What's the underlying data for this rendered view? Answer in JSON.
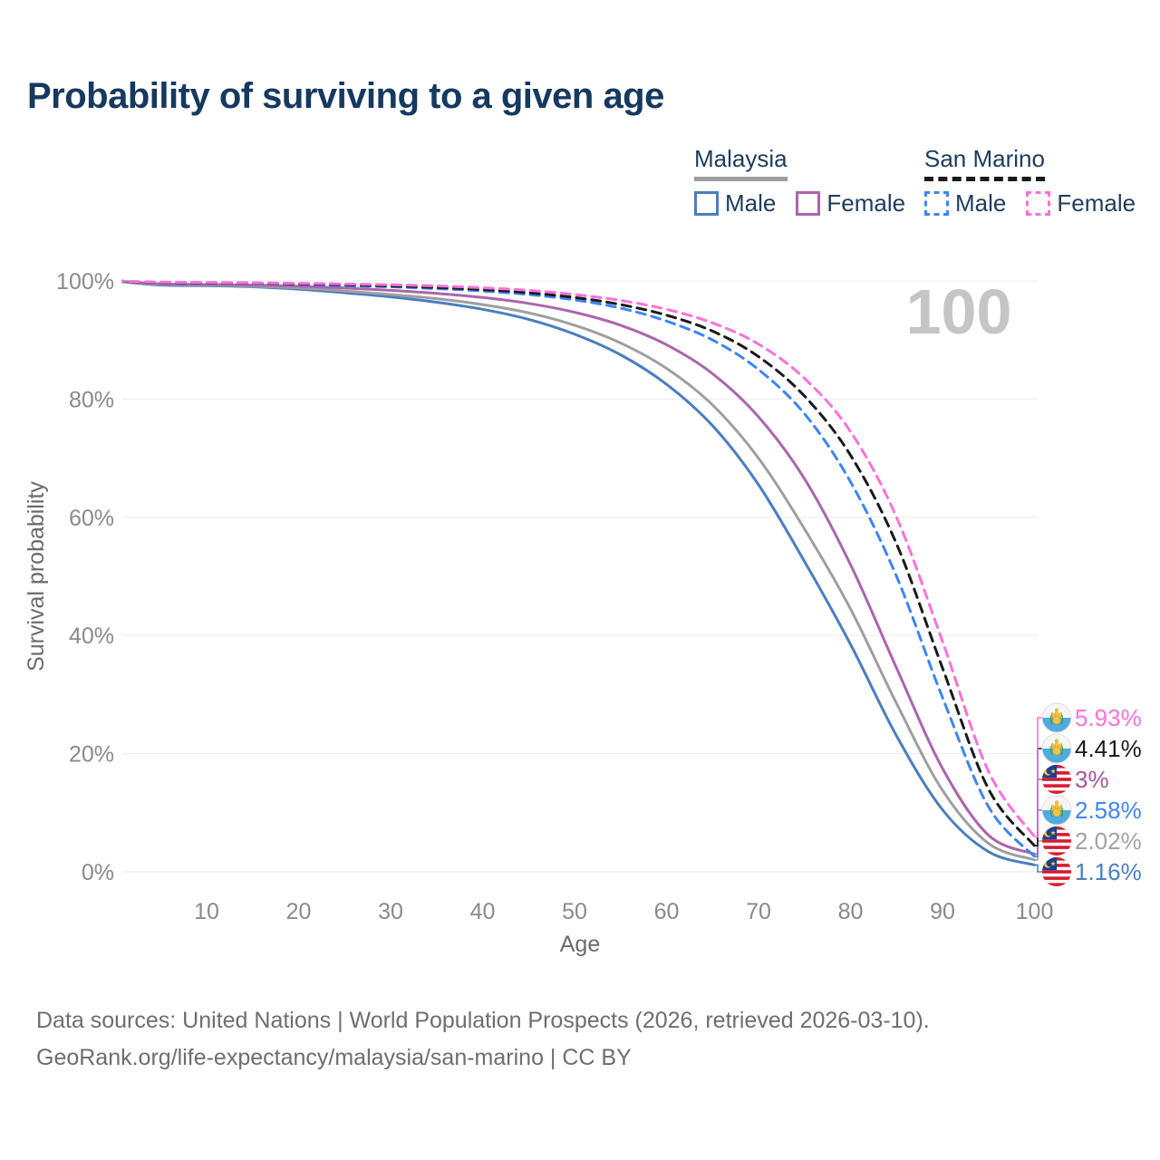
{
  "title": "Probability of surviving to a given age",
  "legend": {
    "groups": [
      {
        "id": "malaysia",
        "label": "Malaysia",
        "line_style": "solid",
        "underline_color": "#9e9e9e",
        "items": [
          {
            "label": "Male",
            "color": "#4a7ec0"
          },
          {
            "label": "Female",
            "color": "#ad64ad"
          }
        ]
      },
      {
        "id": "san-marino",
        "label": "San Marino",
        "line_style": "dashed",
        "underline_color": "#1a1a1a",
        "items": [
          {
            "label": "Male",
            "color": "#3d85f2"
          },
          {
            "label": "Female",
            "color": "#ff70d9"
          }
        ]
      }
    ]
  },
  "chart_data": {
    "type": "line",
    "title": "Probability of surviving to a given age",
    "xlabel": "Age",
    "ylabel": "Survival probability",
    "xlim": [
      0,
      100
    ],
    "ylim": [
      0,
      100
    ],
    "x_ticks": [
      10,
      20,
      30,
      40,
      50,
      60,
      70,
      80,
      90,
      100
    ],
    "y_ticks": [
      0,
      20,
      40,
      60,
      80,
      100
    ],
    "y_tick_labels": [
      "0%",
      "20%",
      "40%",
      "60%",
      "80%",
      "100%"
    ],
    "grid": true,
    "legend_position": "top-right",
    "age_indicator": "100",
    "x_ages": [
      0,
      5,
      10,
      15,
      20,
      25,
      30,
      35,
      40,
      45,
      50,
      55,
      60,
      65,
      70,
      75,
      80,
      85,
      90,
      95,
      100
    ],
    "series": [
      {
        "id": "my-male",
        "name": "Malaysia Male",
        "country": "Malaysia",
        "sex": "male",
        "line_style": "solid",
        "color": "#4a7ec0",
        "label_color": "#4a7ec0",
        "flag_icon": "malaysia-flag-icon",
        "end_value_label": "1.16%",
        "end_value": 1.16,
        "values": [
          100,
          99.3,
          99.2,
          99.0,
          98.6,
          98.0,
          97.3,
          96.4,
          95.2,
          93.5,
          91.0,
          87.5,
          82.5,
          75.5,
          65.5,
          52.5,
          38.5,
          23.0,
          10.5,
          3.4,
          1.16
        ]
      },
      {
        "id": "my-all",
        "name": "Malaysia Both sexes",
        "country": "Malaysia",
        "sex": "all",
        "line_style": "solid",
        "color": "#9f9f9f",
        "label_color": "#a3a3a3",
        "flag_icon": "malaysia-flag-icon",
        "end_value_label": "2.02%",
        "end_value": 2.02,
        "values": [
          100,
          99.4,
          99.3,
          99.1,
          98.8,
          98.3,
          97.7,
          97.0,
          96.0,
          94.6,
          92.5,
          89.5,
          85.2,
          79.0,
          70.0,
          58.0,
          44.5,
          28.5,
          13.8,
          4.8,
          2.02
        ]
      },
      {
        "id": "my-female",
        "name": "Malaysia Female",
        "country": "Malaysia",
        "sex": "female",
        "line_style": "solid",
        "color": "#ad64ad",
        "label_color": "#a8549e",
        "flag_icon": "malaysia-flag-icon",
        "end_value_label": "3%",
        "end_value": 3.0,
        "values": [
          100,
          99.5,
          99.4,
          99.3,
          99.1,
          98.8,
          98.4,
          97.9,
          97.2,
          96.2,
          94.7,
          92.5,
          89.2,
          84.3,
          77.0,
          66.5,
          52.0,
          34.5,
          17.5,
          6.2,
          3.0
        ]
      },
      {
        "id": "sm-male",
        "name": "San Marino Male",
        "country": "San Marino",
        "sex": "male",
        "line_style": "dashed",
        "color": "#3d85f2",
        "label_color": "#3d85f2",
        "flag_icon": "san-marino-flag-icon",
        "end_value_label": "2.58%",
        "end_value": 2.58,
        "values": [
          100,
          99.7,
          99.65,
          99.6,
          99.4,
          99.2,
          99.0,
          98.7,
          98.3,
          97.7,
          96.8,
          95.4,
          93.2,
          90.0,
          85.0,
          77.5,
          66.0,
          50.0,
          29.5,
          11.0,
          2.58
        ]
      },
      {
        "id": "sm-all",
        "name": "San Marino Both sexes",
        "country": "San Marino",
        "sex": "all",
        "line_style": "dashed",
        "color": "#1a1a1a",
        "label_color": "#1a1a1a",
        "flag_icon": "san-marino-flag-icon",
        "end_value_label": "4.41%",
        "end_value": 4.41,
        "values": [
          100,
          99.75,
          99.7,
          99.65,
          99.5,
          99.35,
          99.15,
          98.9,
          98.55,
          98.0,
          97.2,
          96.0,
          94.2,
          91.5,
          87.2,
          80.5,
          70.5,
          55.5,
          34.5,
          14.0,
          4.41
        ]
      },
      {
        "id": "sm-female",
        "name": "San Marino Female",
        "country": "San Marino",
        "sex": "female",
        "line_style": "dashed",
        "color": "#ff70d9",
        "label_color": "#ff70d9",
        "flag_icon": "san-marino-flag-icon",
        "end_value_label": "5.93%",
        "end_value": 5.93,
        "values": [
          100,
          99.8,
          99.75,
          99.7,
          99.6,
          99.5,
          99.35,
          99.15,
          98.85,
          98.4,
          97.7,
          96.7,
          95.2,
          92.9,
          89.3,
          83.5,
          74.5,
          60.0,
          39.0,
          17.0,
          5.93
        ]
      }
    ]
  },
  "footer": {
    "line1": "Data sources: United Nations | World Population Prospects (2026, retrieved 2026-03-10).",
    "line2": "GeoRank.org/life-expectancy/malaysia/san-marino | CC BY"
  }
}
